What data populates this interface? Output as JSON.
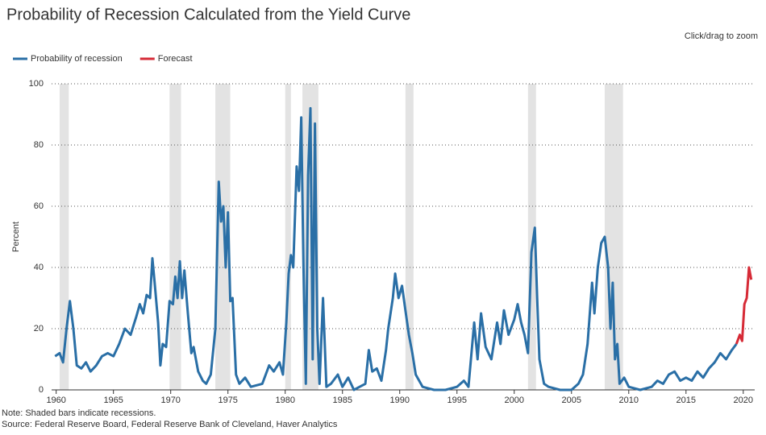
{
  "chart_data": {
    "type": "line",
    "title": "Probability of Recession Calculated from the Yield Curve",
    "zoom_hint": "Click/drag to zoom",
    "y_label": "Percent",
    "notes": [
      "Note: Shaded bars indicate recessions.",
      "Source: Federal Reserve Board, Federal Reserve Bank of Cleveland, Haver Analytics"
    ],
    "xlim": [
      1959.6,
      2021
    ],
    "ylim": [
      0,
      100
    ],
    "xticks": [
      1960,
      1965,
      1970,
      1975,
      1980,
      1985,
      1990,
      1995,
      2000,
      2005,
      2010,
      2015,
      2020
    ],
    "yticks": [
      0,
      20,
      40,
      60,
      80,
      100
    ],
    "grid": true,
    "legend": "top-left",
    "recessions": [
      [
        1960.3,
        1961.1
      ],
      [
        1969.9,
        1970.9
      ],
      [
        1973.9,
        1975.2
      ],
      [
        1980.0,
        1980.5
      ],
      [
        1981.5,
        1982.9
      ],
      [
        1990.5,
        1991.2
      ],
      [
        2001.2,
        2001.9
      ],
      [
        2007.9,
        2009.5
      ]
    ],
    "recession_color": "#e3e3e3",
    "series": [
      {
        "name": "Probability of recession",
        "color": "#2a6fa6",
        "x": [
          1959.9,
          1960.3,
          1960.6,
          1960.9,
          1961.2,
          1961.5,
          1961.8,
          1962.2,
          1962.6,
          1963.0,
          1963.5,
          1964.0,
          1964.5,
          1965.0,
          1965.5,
          1966.0,
          1966.5,
          1967.0,
          1967.3,
          1967.6,
          1967.9,
          1968.2,
          1968.4,
          1968.6,
          1968.9,
          1969.1,
          1969.3,
          1969.6,
          1969.9,
          1970.2,
          1970.4,
          1970.6,
          1970.8,
          1971.0,
          1971.2,
          1971.5,
          1971.8,
          1972.0,
          1972.4,
          1972.8,
          1973.1,
          1973.5,
          1973.9,
          1974.2,
          1974.4,
          1974.6,
          1974.8,
          1975.0,
          1975.2,
          1975.4,
          1975.7,
          1976.0,
          1976.5,
          1977.0,
          1978.0,
          1978.6,
          1979.0,
          1979.5,
          1979.8,
          1980.1,
          1980.3,
          1980.5,
          1980.7,
          1981.0,
          1981.2,
          1981.4,
          1981.6,
          1981.8,
          1982.0,
          1982.2,
          1982.4,
          1982.6,
          1982.8,
          1983.0,
          1983.3,
          1983.6,
          1984.0,
          1984.6,
          1985.0,
          1985.5,
          1986.0,
          1986.5,
          1987.0,
          1987.3,
          1987.6,
          1988.0,
          1988.4,
          1988.8,
          1989.0,
          1989.4,
          1989.6,
          1989.9,
          1990.2,
          1990.5,
          1990.8,
          1991.1,
          1991.4,
          1992.0,
          1993.0,
          1994.0,
          1995.0,
          1995.6,
          1996.0,
          1996.5,
          1996.8,
          1997.1,
          1997.5,
          1998.0,
          1998.5,
          1998.8,
          1999.1,
          1999.5,
          2000.0,
          2000.3,
          2000.6,
          2000.9,
          2001.2,
          2001.5,
          2001.8,
          2002.0,
          2002.2,
          2002.6,
          2003.0,
          2004.0,
          2005.0,
          2005.6,
          2006.0,
          2006.4,
          2006.8,
          2007.0,
          2007.3,
          2007.6,
          2007.9,
          2008.2,
          2008.4,
          2008.6,
          2008.8,
          2009.0,
          2009.2,
          2009.6,
          2010.0,
          2011.0,
          2012.0,
          2012.5,
          2013.0,
          2013.5,
          2014.0,
          2014.5,
          2015.0,
          2015.5,
          2016.0,
          2016.5,
          2017.0,
          2017.5,
          2018.0,
          2018.5,
          2019.0,
          2019.4
        ],
        "values": [
          11,
          12,
          9,
          20,
          29,
          20,
          8,
          7,
          9,
          6,
          8,
          11,
          12,
          11,
          15,
          20,
          18,
          24,
          28,
          25,
          31,
          30,
          43,
          35,
          22,
          8,
          15,
          14,
          29,
          28,
          37,
          30,
          42,
          30,
          39,
          25,
          12,
          14,
          6,
          3,
          2,
          5,
          20,
          68,
          55,
          60,
          40,
          58,
          29,
          30,
          5,
          2,
          4,
          1,
          2,
          8,
          6,
          9,
          5,
          22,
          38,
          44,
          40,
          73,
          65,
          89,
          40,
          2,
          70,
          92,
          10,
          87,
          20,
          2,
          30,
          1,
          2,
          5,
          1,
          4,
          0,
          1,
          2,
          13,
          6,
          7,
          3,
          13,
          20,
          30,
          38,
          30,
          34,
          26,
          18,
          12,
          5,
          1,
          0,
          0,
          1,
          3,
          1,
          22,
          10,
          25,
          14,
          10,
          22,
          15,
          26,
          18,
          23,
          28,
          22,
          18,
          12,
          45,
          53,
          30,
          10,
          2,
          1,
          0,
          0,
          2,
          5,
          15,
          35,
          25,
          40,
          48,
          50,
          40,
          20,
          35,
          10,
          15,
          2,
          4,
          1,
          0,
          1,
          3,
          2,
          5,
          6,
          3,
          4,
          3,
          6,
          4,
          7,
          9,
          12,
          10,
          13,
          15
        ]
      },
      {
        "name": "Forecast",
        "color": "#d62a36",
        "x": [
          2019.4,
          2019.7,
          2019.9,
          2020.1,
          2020.3,
          2020.5,
          2020.7
        ],
        "values": [
          15,
          18,
          16,
          28,
          30,
          40,
          36
        ]
      }
    ]
  }
}
